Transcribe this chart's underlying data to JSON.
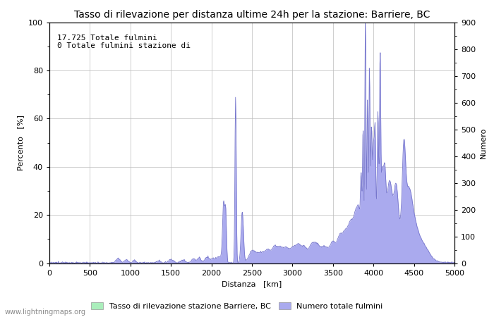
{
  "title": "Tasso di rilevazione per distanza ultime 24h per la stazione: Barriere, BC",
  "xlabel": "Distanza   [km]",
  "ylabel_left": "Percento   [%]",
  "ylabel_right": "Numero",
  "annotation_line1": "17.725 Totale fulmini",
  "annotation_line2": "0 Totale fulmini stazione di",
  "xlim": [
    0,
    5000
  ],
  "ylim_left": [
    0,
    100
  ],
  "ylim_right": [
    0,
    900
  ],
  "xticks": [
    0,
    500,
    1000,
    1500,
    2000,
    2500,
    3000,
    3500,
    4000,
    4500,
    5000
  ],
  "yticks_left": [
    0,
    20,
    40,
    60,
    80,
    100
  ],
  "yticks_right": [
    0,
    100,
    200,
    300,
    400,
    500,
    600,
    700,
    800,
    900
  ],
  "legend_label_green": "Tasso di rilevazione stazione Barriere, BC",
  "legend_label_blue": "Numero totale fulmini",
  "watermark": "www.lightningmaps.org",
  "fill_color_blue": "#aaaaee",
  "fill_color_green": "#aaeebb",
  "line_color": "#7777cc",
  "background_color": "#ffffff",
  "grid_color": "#bbbbbb",
  "title_fontsize": 10,
  "axis_fontsize": 8,
  "tick_fontsize": 8,
  "annotation_fontsize": 8
}
